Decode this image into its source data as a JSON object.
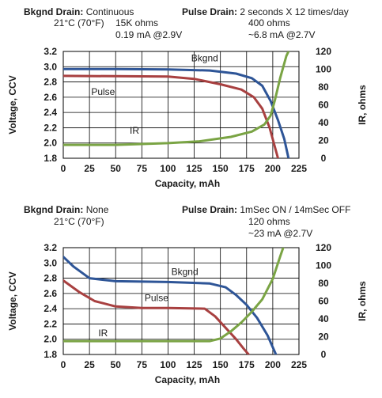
{
  "chart_data": [
    {
      "type": "line",
      "conditions": {
        "bkgnd_label": "Bkgnd Drain:",
        "bkgnd_lines": [
          "Continuous",
          "15K ohms",
          "0.19 mA @2.9V"
        ],
        "temperature": "21°C (70°F)",
        "pulse_label": "Pulse Drain:",
        "pulse_lines": [
          "2 seconds X 12 times/day",
          "400 ohms",
          "~6.8 mA @2.7V"
        ]
      },
      "xlabel": "Capacity, mAh",
      "ylabel": "Voltage, CCV",
      "y2label": "IR, ohms",
      "xlim": [
        0,
        225
      ],
      "ylim": [
        1.8,
        3.2
      ],
      "y2lim": [
        0,
        120
      ],
      "xticks": [
        "0",
        "25",
        "50",
        "75",
        "100",
        "125",
        "150",
        "175",
        "200",
        "225"
      ],
      "yticks": [
        "1.8",
        "2.0",
        "2.2",
        "2.4",
        "2.6",
        "2.8",
        "3.0",
        "3.2"
      ],
      "y2ticks": [
        "0",
        "20",
        "40",
        "60",
        "80",
        "100",
        "120"
      ],
      "grid": true,
      "series": [
        {
          "name": "Bkgnd",
          "axis": "left",
          "color": "#2e5597",
          "label_at": [
            135,
            3.07
          ],
          "points": [
            [
              0,
              2.97
            ],
            [
              50,
              2.97
            ],
            [
              100,
              2.965
            ],
            [
              140,
              2.95
            ],
            [
              165,
              2.91
            ],
            [
              180,
              2.85
            ],
            [
              190,
              2.75
            ],
            [
              198,
              2.55
            ],
            [
              205,
              2.3
            ],
            [
              211,
              2.05
            ],
            [
              215,
              1.8
            ]
          ]
        },
        {
          "name": "Pulse",
          "axis": "left",
          "color": "#a84040",
          "label_at": [
            38,
            2.63
          ],
          "points": [
            [
              0,
              2.88
            ],
            [
              50,
              2.875
            ],
            [
              100,
              2.87
            ],
            [
              125,
              2.84
            ],
            [
              150,
              2.77
            ],
            [
              170,
              2.7
            ],
            [
              182,
              2.6
            ],
            [
              190,
              2.45
            ],
            [
              197,
              2.2
            ],
            [
              202,
              1.95
            ],
            [
              205,
              1.8
            ]
          ]
        },
        {
          "name": "IR",
          "axis": "right",
          "color": "#7aa444",
          "label_at": [
            68,
            2.12
          ],
          "points": [
            [
              0,
              15
            ],
            [
              50,
              15
            ],
            [
              100,
              17
            ],
            [
              130,
              19
            ],
            [
              160,
              24
            ],
            [
              180,
              30
            ],
            [
              192,
              38
            ],
            [
              198,
              48
            ],
            [
              202,
              65
            ],
            [
              207,
              90
            ],
            [
              213,
              115
            ],
            [
              215,
              120
            ]
          ]
        }
      ]
    },
    {
      "type": "line",
      "conditions": {
        "bkgnd_label": "Bkgnd Drain:",
        "bkgnd_lines": [
          "None"
        ],
        "temperature": "21°C (70°F)",
        "pulse_label": "Pulse Drain:",
        "pulse_lines": [
          "1mSec ON / 14mSec OFF",
          "120 ohms",
          "~23 mA @2.7V"
        ]
      },
      "xlabel": "Capacity, mAh",
      "ylabel": "Voltage, CCV",
      "y2label": "IR, ohms",
      "xlim": [
        0,
        225
      ],
      "ylim": [
        1.8,
        3.2
      ],
      "y2lim": [
        0,
        120
      ],
      "xticks": [
        "0",
        "25",
        "50",
        "75",
        "100",
        "125",
        "150",
        "175",
        "200",
        "225"
      ],
      "yticks": [
        "1.8",
        "2.0",
        "2.2",
        "2.4",
        "2.6",
        "2.8",
        "3.0",
        "3.2"
      ],
      "y2ticks": [
        "0",
        "20",
        "40",
        "60",
        "80",
        "100",
        "120"
      ],
      "grid": true,
      "series": [
        {
          "name": "Bkgnd",
          "axis": "left",
          "color": "#2e5597",
          "label_at": [
            116,
            2.84
          ],
          "points": [
            [
              0,
              3.08
            ],
            [
              10,
              2.95
            ],
            [
              25,
              2.8
            ],
            [
              50,
              2.76
            ],
            [
              100,
              2.75
            ],
            [
              140,
              2.73
            ],
            [
              155,
              2.68
            ],
            [
              165,
              2.58
            ],
            [
              175,
              2.45
            ],
            [
              185,
              2.28
            ],
            [
              195,
              2.05
            ],
            [
              203,
              1.8
            ]
          ]
        },
        {
          "name": "Pulse",
          "axis": "left",
          "color": "#a84040",
          "label_at": [
            89,
            2.5
          ],
          "points": [
            [
              0,
              2.77
            ],
            [
              15,
              2.62
            ],
            [
              30,
              2.5
            ],
            [
              50,
              2.43
            ],
            [
              75,
              2.41
            ],
            [
              100,
              2.41
            ],
            [
              135,
              2.4
            ],
            [
              145,
              2.3
            ],
            [
              155,
              2.15
            ],
            [
              165,
              2.0
            ],
            [
              172,
              1.88
            ],
            [
              177,
              1.8
            ]
          ]
        },
        {
          "name": "IR",
          "axis": "right",
          "color": "#7aa444",
          "label_at": [
            38,
            2.04
          ],
          "points": [
            [
              0,
              15
            ],
            [
              50,
              15
            ],
            [
              100,
              15
            ],
            [
              140,
              15
            ],
            [
              150,
              18
            ],
            [
              160,
              26
            ],
            [
              170,
              36
            ],
            [
              180,
              48
            ],
            [
              190,
              62
            ],
            [
              200,
              85
            ],
            [
              207,
              110
            ],
            [
              210,
              120
            ]
          ]
        }
      ]
    }
  ]
}
